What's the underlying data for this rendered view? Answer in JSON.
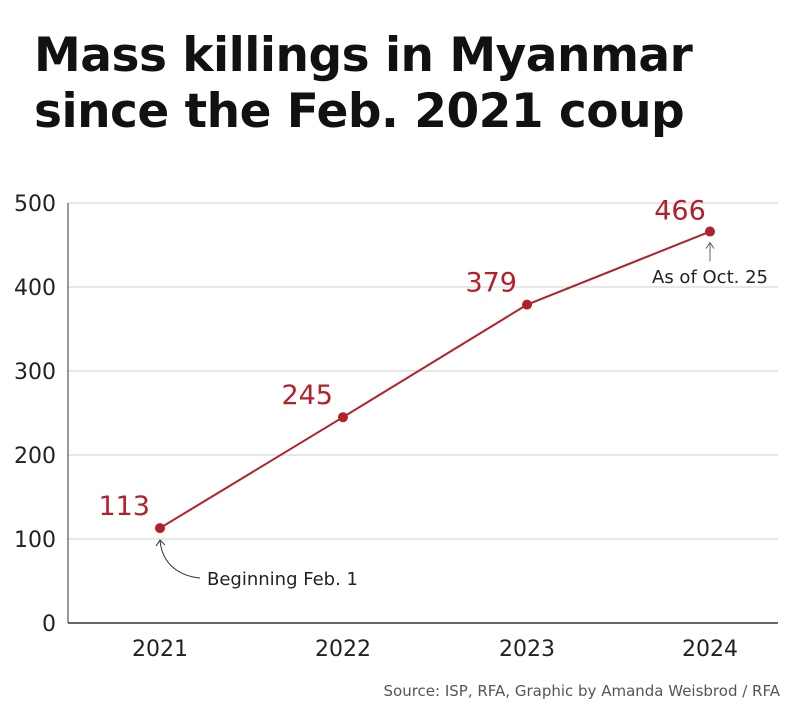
{
  "chart_data": {
    "type": "line",
    "title": "Mass killings in Myanmar since the Feb. 2021 coup",
    "x": [
      "2021",
      "2022",
      "2023",
      "2024"
    ],
    "values": [
      113,
      245,
      379,
      466
    ],
    "ylim": [
      0,
      500
    ],
    "yticks": [
      0,
      100,
      200,
      300,
      400,
      500
    ],
    "xlabel": "",
    "ylabel": "",
    "grid": "horizontal",
    "color": "#b3202a",
    "annotations": [
      {
        "x": "2021",
        "text": "Beginning Feb. 1"
      },
      {
        "x": "2024",
        "text": "As of Oct. 25"
      }
    ],
    "source": "Source: ISP, RFA, Graphic by Amanda Weisbrod / RFA"
  }
}
